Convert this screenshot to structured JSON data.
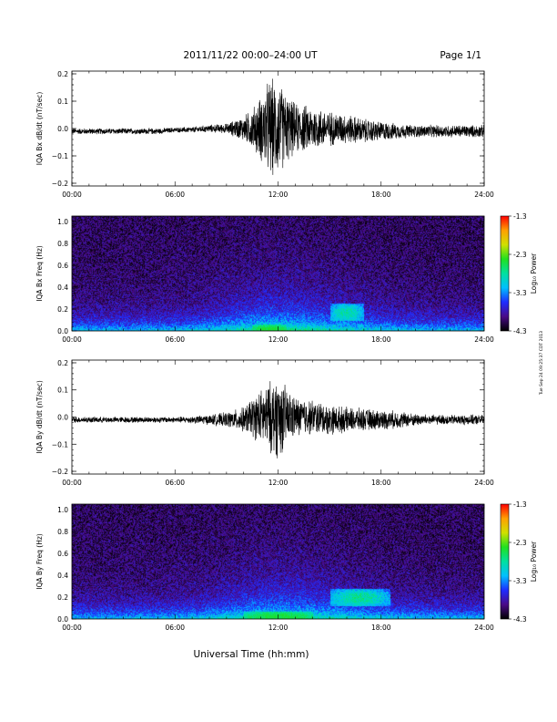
{
  "header": {
    "title": "2011/11/22  00:00–24:00 UT",
    "page": "Page 1/1"
  },
  "side_note": "Tue Sep 24 09:25:37 CDT 2013",
  "xlabel": "Universal Time (hh:mm)",
  "x_ticks": [
    "00:00",
    "06:00",
    "12:00",
    "18:00",
    "24:00"
  ],
  "colorbar": {
    "label": "Log₁₀ Power",
    "ticks": [
      "-1.3",
      "-2.3",
      "-3.3",
      "-4.3"
    ],
    "range": [
      -4.3,
      -1.3
    ],
    "colors": [
      "#000000",
      "#4a0b87",
      "#1f2cff",
      "#00bfff",
      "#00e0a0",
      "#20e020",
      "#d0e000",
      "#ffa000",
      "#ff0000"
    ]
  },
  "chart_data": [
    {
      "type": "line",
      "id": "bx-dbdt",
      "ylabel": "IQA Bx dB/dt (nT/sec)",
      "xlim": [
        0,
        24
      ],
      "ylim": [
        -0.21,
        0.21
      ],
      "yticks": [
        -0.2,
        -0.1,
        0.0,
        0.1,
        0.2
      ],
      "ytick_labels": [
        "−0.2",
        "−0.1",
        "0.0",
        "0.1",
        "0.2"
      ],
      "series": [
        {
          "x": [
            0,
            1,
            2,
            3,
            4,
            5,
            6,
            7,
            8,
            9,
            10,
            10.5,
            11,
            11.5,
            12,
            12.5,
            13,
            14,
            15,
            16,
            17,
            18,
            19,
            20,
            21,
            22,
            23,
            24
          ],
          "baseline": [
            -0.01,
            -0.01,
            -0.01,
            -0.01,
            -0.01,
            -0.01,
            -0.005,
            -0.005,
            0,
            0,
            0,
            0,
            0,
            0,
            0,
            0,
            0,
            0,
            0,
            0,
            -0.01,
            -0.01,
            -0.01,
            -0.01,
            -0.01,
            -0.01,
            -0.01,
            -0.01
          ],
          "amplitude": [
            0.012,
            0.012,
            0.012,
            0.012,
            0.012,
            0.012,
            0.01,
            0.012,
            0.015,
            0.02,
            0.05,
            0.08,
            0.13,
            0.2,
            0.19,
            0.14,
            0.1,
            0.09,
            0.07,
            0.06,
            0.05,
            0.04,
            0.03,
            0.025,
            0.025,
            0.025,
            0.025,
            0.025
          ]
        }
      ]
    },
    {
      "type": "heatmap",
      "id": "bx-freq",
      "ylabel": "IQA Bx Freq (Hz)",
      "xlim": [
        0,
        24
      ],
      "ylim": [
        0,
        1.05
      ],
      "yticks": [
        0,
        0.2,
        0.4,
        0.6,
        0.8,
        1.0
      ],
      "ytick_labels": [
        "0.0",
        "0.2",
        "0.4",
        "0.6",
        "0.8",
        "1.0"
      ],
      "zlim": [
        -4.3,
        -1.3
      ],
      "enhancements": [
        {
          "t0": 15.0,
          "t1": 17.0,
          "f0": 0.1,
          "f1": 0.25,
          "level": -2.6
        },
        {
          "t0": 10.5,
          "t1": 12.5,
          "f0": 0.0,
          "f1": 0.06,
          "level": -2.4
        }
      ]
    },
    {
      "type": "line",
      "id": "by-dbdt",
      "ylabel": "IQA By dB/dt (nT/sec)",
      "xlim": [
        0,
        24
      ],
      "ylim": [
        -0.21,
        0.21
      ],
      "yticks": [
        -0.2,
        -0.1,
        0.0,
        0.1,
        0.2
      ],
      "ytick_labels": [
        "−0.2",
        "−0.1",
        "0.0",
        "0.1",
        "0.2"
      ],
      "series": [
        {
          "x": [
            0,
            1,
            2,
            3,
            4,
            5,
            6,
            7,
            8,
            9,
            10,
            10.5,
            11,
            11.5,
            12,
            12.5,
            13,
            14,
            15,
            16,
            17,
            18,
            19,
            20,
            21,
            22,
            23,
            24
          ],
          "baseline": [
            -0.01,
            -0.01,
            -0.01,
            -0.01,
            -0.01,
            -0.01,
            -0.01,
            -0.01,
            -0.01,
            -0.01,
            -0.01,
            0,
            0,
            0,
            0,
            0,
            0,
            0,
            -0.01,
            -0.01,
            -0.01,
            -0.01,
            -0.01,
            -0.01,
            -0.01,
            -0.01,
            -0.01,
            -0.01
          ],
          "amplitude": [
            0.012,
            0.012,
            0.012,
            0.012,
            0.012,
            0.012,
            0.012,
            0.015,
            0.02,
            0.03,
            0.05,
            0.08,
            0.11,
            0.14,
            0.17,
            0.12,
            0.08,
            0.07,
            0.06,
            0.05,
            0.045,
            0.04,
            0.035,
            0.025,
            0.02,
            0.02,
            0.02,
            0.02
          ]
        }
      ]
    },
    {
      "type": "heatmap",
      "id": "by-freq",
      "ylabel": "IQA By Freq (Hz)",
      "xlim": [
        0,
        24
      ],
      "ylim": [
        0,
        1.05
      ],
      "yticks": [
        0,
        0.2,
        0.4,
        0.6,
        0.8,
        1.0
      ],
      "ytick_labels": [
        "0.0",
        "0.2",
        "0.4",
        "0.6",
        "0.8",
        "1.0"
      ],
      "zlim": [
        -4.3,
        -1.3
      ],
      "enhancements": [
        {
          "t0": 15.0,
          "t1": 18.5,
          "f0": 0.12,
          "f1": 0.28,
          "level": -2.5
        },
        {
          "t0": 10.0,
          "t1": 14.0,
          "f0": 0.0,
          "f1": 0.07,
          "level": -2.4
        }
      ]
    }
  ]
}
